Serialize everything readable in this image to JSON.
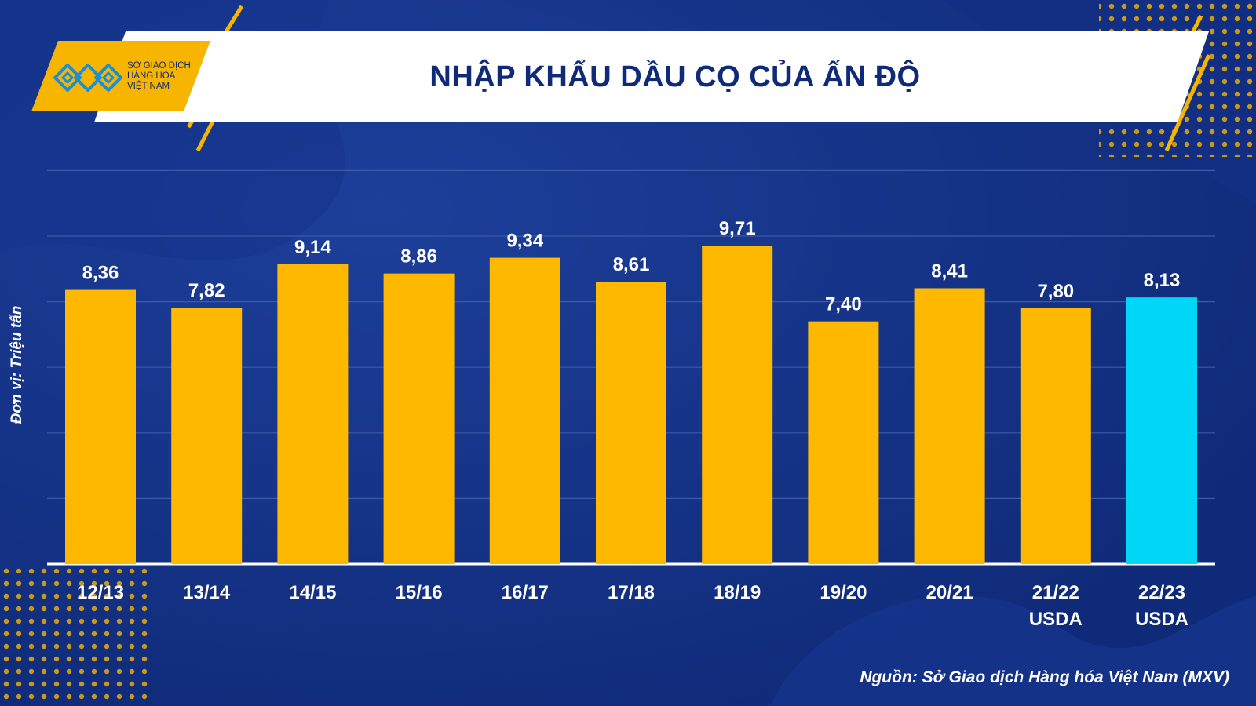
{
  "header": {
    "title": "NHẬP KHẨU DẦU CỌ CỦA ẤN ĐỘ",
    "logo_lines": [
      "SỞ GIAO DỊCH",
      "HÀNG HÓA",
      "VIỆT NAM"
    ]
  },
  "footer": {
    "source": "Nguồn: Sở Giao dịch Hàng hóa Việt Nam (MXV)"
  },
  "colors": {
    "background": "#0f2a78",
    "bar": "#ffb800",
    "highlight_bar": "#00d7f7",
    "accent": "#f7b500",
    "title": "#0f2a78"
  },
  "chart_data": {
    "type": "bar",
    "title": "NHẬP KHẨU DẦU CỌ CỦA ẤN ĐỘ",
    "xlabel": "",
    "ylabel": "Đơn vị: Triệu tấn",
    "categories": [
      [
        "12/13"
      ],
      [
        "13/14"
      ],
      [
        "14/15"
      ],
      [
        "15/16"
      ],
      [
        "16/17"
      ],
      [
        "17/18"
      ],
      [
        "18/19"
      ],
      [
        "19/20"
      ],
      [
        "20/21"
      ],
      [
        "21/22",
        "USDA"
      ],
      [
        "22/23",
        "USDA"
      ]
    ],
    "values": [
      8.36,
      7.82,
      9.14,
      8.86,
      9.34,
      8.61,
      9.71,
      7.4,
      8.41,
      7.8,
      8.13
    ],
    "value_labels": [
      "8,36",
      "7,82",
      "9,14",
      "8,86",
      "9,34",
      "8,61",
      "9,71",
      "7,40",
      "8,41",
      "7,80",
      "8,13"
    ],
    "highlight_index": 10,
    "ylim": [
      0,
      12
    ],
    "grid": true,
    "legend": "none"
  }
}
